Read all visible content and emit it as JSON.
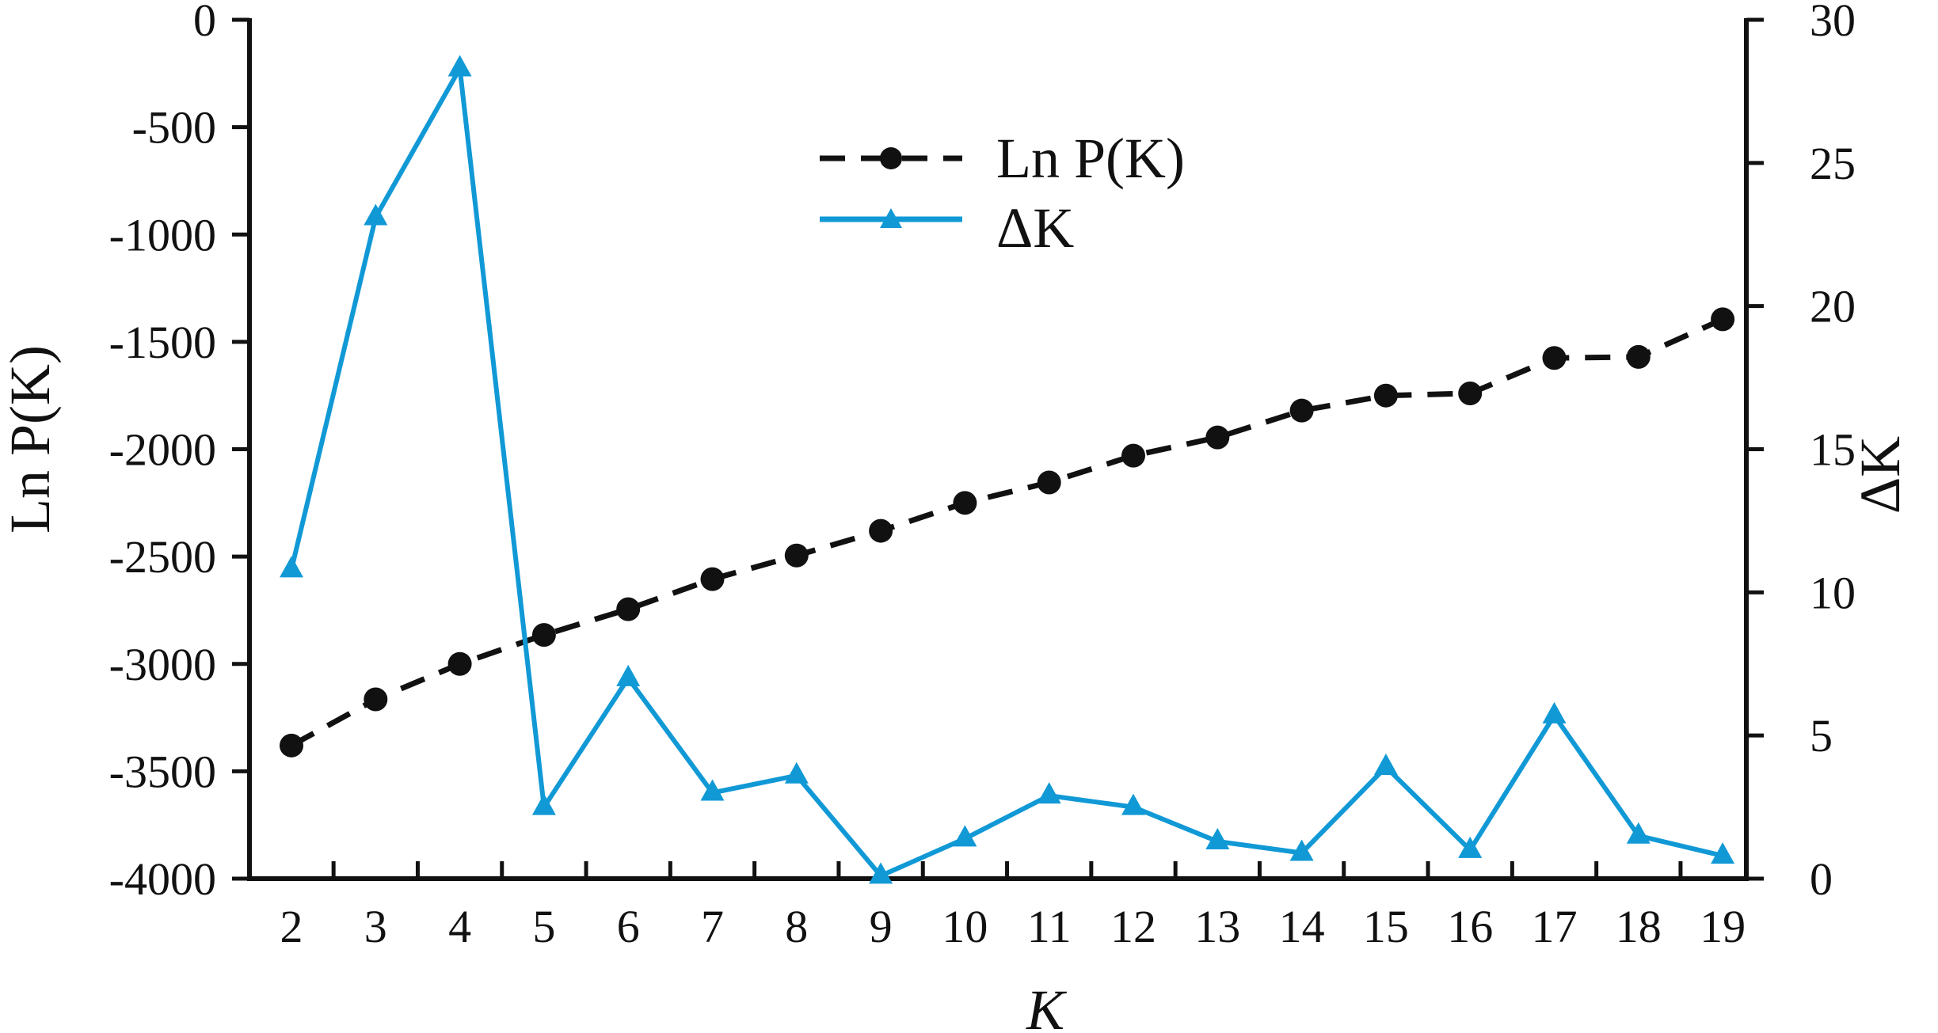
{
  "chart_data": {
    "type": "line",
    "x": [
      2,
      3,
      4,
      5,
      6,
      7,
      8,
      9,
      10,
      11,
      12,
      13,
      14,
      15,
      16,
      17,
      18,
      19
    ],
    "xlabel": "K",
    "ylabel_left": "Ln P(K)",
    "ylabel_right": "ΔK",
    "ylim_left": [
      -4000,
      0
    ],
    "yticks_left": [
      0,
      -500,
      -1000,
      -1500,
      -2000,
      -2500,
      -3000,
      -3500,
      -4000
    ],
    "ylim_right": [
      0,
      30
    ],
    "yticks_right": [
      30,
      25,
      20,
      15,
      10,
      5,
      0
    ],
    "grid": false,
    "legend_position": "top-center",
    "series": [
      {
        "name": "Ln P(K)",
        "axis": "left",
        "style": "dashed-circle",
        "color": "#111111",
        "values": [
          -3380,
          -3165,
          -3000,
          -2865,
          -2745,
          -2605,
          -2495,
          -2380,
          -2250,
          -2155,
          -2030,
          -1945,
          -1820,
          -1750,
          -1740,
          -1575,
          -1570,
          -1395
        ]
      },
      {
        "name": "ΔK",
        "axis": "right",
        "style": "solid-triangle",
        "color": "#1199d6",
        "values": [
          10.8,
          23.1,
          28.3,
          2.5,
          7.0,
          3.0,
          3.6,
          0.1,
          1.4,
          2.9,
          2.5,
          1.3,
          0.9,
          3.9,
          1.0,
          5.7,
          1.5,
          0.8
        ]
      }
    ]
  }
}
